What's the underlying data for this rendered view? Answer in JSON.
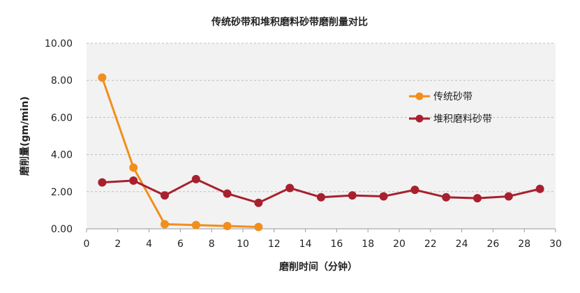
{
  "chart_data": {
    "type": "line",
    "title": "传统砂带和堆积磨料砂带磨削量对比",
    "xlabel": "磨削时间（分钟）",
    "ylabel": "磨削量(gm/min)",
    "xlim": [
      0,
      30
    ],
    "ylim": [
      0,
      10
    ],
    "x_ticks": [
      "0",
      "2",
      "4",
      "6",
      "8",
      "10",
      "12",
      "14",
      "16",
      "18",
      "20",
      "22",
      "24",
      "26",
      "28",
      "30"
    ],
    "y_ticks": [
      "0.00",
      "2.00",
      "4.00",
      "6.00",
      "8.00",
      "10.00"
    ],
    "grid": "horizontal dashed",
    "legend_position": "right",
    "series": [
      {
        "name": "传统砂带",
        "color": "#f28e1c",
        "x": [
          1,
          3,
          5,
          7,
          9,
          11
        ],
        "y": [
          8.15,
          3.3,
          0.25,
          0.2,
          0.15,
          0.1
        ]
      },
      {
        "name": "堆积磨料砂带",
        "color": "#a8202e",
        "x": [
          1,
          3,
          5,
          7,
          9,
          11,
          13,
          15,
          17,
          19,
          21,
          23,
          25,
          27,
          29
        ],
        "y": [
          2.5,
          2.6,
          1.8,
          2.68,
          1.9,
          1.4,
          2.2,
          1.7,
          1.8,
          1.75,
          2.1,
          1.7,
          1.65,
          1.75,
          2.15
        ]
      }
    ]
  }
}
